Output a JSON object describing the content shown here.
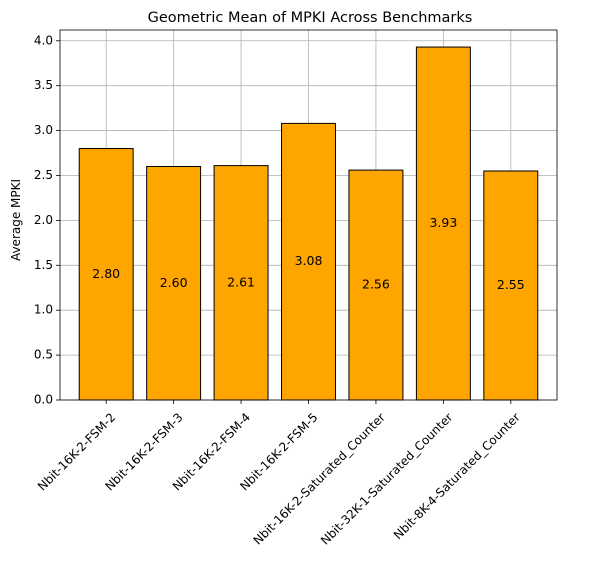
{
  "chart_data": {
    "type": "bar",
    "title": "Geometric Mean of MPKI Across Benchmarks",
    "xlabel": "",
    "ylabel": "Average MPKI",
    "categories": [
      "Nbit-16K-2-FSM-2",
      "Nbit-16K-2-FSM-3",
      "Nbit-16K-2-FSM-4",
      "Nbit-16K-2-FSM-5",
      "Nbit-16K-2-Saturated_Counter",
      "Nbit-32K-1-Saturated_Counter",
      "Nbit-8K-4-Saturated_Counter"
    ],
    "values": [
      2.8,
      2.6,
      2.61,
      3.08,
      2.56,
      3.93,
      2.55
    ],
    "value_labels": [
      "2.80",
      "2.60",
      "2.61",
      "3.08",
      "2.56",
      "3.93",
      "2.55"
    ],
    "ylim": [
      0,
      4.12
    ],
    "yticks": [
      0.0,
      0.5,
      1.0,
      1.5,
      2.0,
      2.5,
      3.0,
      3.5,
      4.0
    ],
    "ytick_labels": [
      "0.0",
      "0.5",
      "1.0",
      "1.5",
      "2.0",
      "2.5",
      "3.0",
      "3.5",
      "4.0"
    ],
    "grid": true,
    "bar_color": "#FFA500",
    "bar_edge_color": "#000000",
    "grid_color": "#B0B0B0"
  }
}
